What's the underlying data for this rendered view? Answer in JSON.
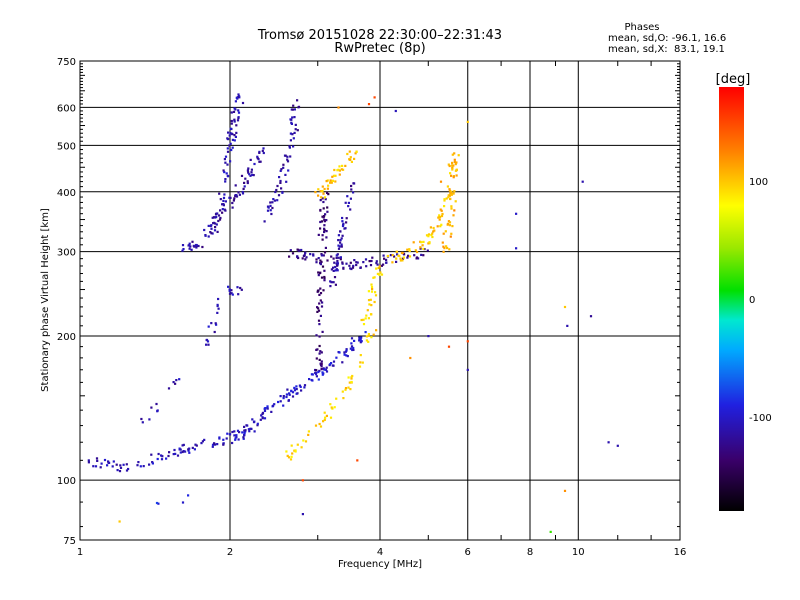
{
  "chart_data": {
    "type": "scatter",
    "title": "Tromsø 20151028 22:30:00–22:31:43",
    "subtitle": "RwPretec (8p)",
    "xlabel": "Frequency [MHz]",
    "ylabel": "Stationary phase Virtual Height [km]",
    "x_scale": "log",
    "y_scale": "log",
    "xlim": [
      1,
      16
    ],
    "ylim": [
      75,
      750
    ],
    "x_ticks": [
      1,
      2,
      4,
      6,
      8,
      10,
      16
    ],
    "x_tick_labels": [
      "1",
      "2",
      "4",
      "6",
      "8",
      "10",
      "16"
    ],
    "y_ticks": [
      75,
      100,
      200,
      300,
      400,
      500,
      600,
      750
    ],
    "y_tick_labels": [
      "75",
      "100",
      "200",
      "300",
      "400",
      "500",
      "600",
      "750"
    ],
    "grid": true,
    "stats": {
      "heading": "Phases",
      "line_o": "mean, sd,O: -96.1, 16.6",
      "line_x": "mean, sd,X:  83.1, 19.1"
    },
    "colorbar": {
      "label": "[deg]",
      "range": [
        -180,
        180
      ],
      "ticks": [
        100,
        0,
        -100
      ],
      "tick_labels": [
        "100",
        "0",
        "-100"
      ]
    },
    "traces": [
      {
        "x": [
          1.0,
          1.1,
          1.2,
          1.3
        ],
        "y": [
          110,
          108,
          107,
          106
        ],
        "phase": -110,
        "n": 25
      },
      {
        "x": [
          1.3,
          1.6,
          1.9,
          2.15,
          2.35
        ],
        "y": [
          108,
          116,
          120,
          126,
          138
        ],
        "phase": -105,
        "n": 95
      },
      {
        "x": [
          2.35,
          2.6,
          2.85,
          3.1,
          3.4,
          3.7
        ],
        "y": [
          138,
          150,
          160,
          170,
          185,
          200
        ],
        "phase": -100,
        "n": 95
      },
      {
        "x": [
          2.6,
          2.85,
          3.1,
          3.4,
          3.7,
          3.9
        ],
        "y": [
          112,
          122,
          135,
          155,
          180,
          210
        ],
        "phase": 95,
        "n": 55
      },
      {
        "x": [
          3.7,
          3.85,
          4.0
        ],
        "y": [
          210,
          240,
          280
        ],
        "phase": 95,
        "n": 30
      },
      {
        "x": [
          1.6,
          1.72,
          1.82,
          1.92,
          2.05,
          2.2,
          2.32
        ],
        "y": [
          300,
          310,
          330,
          360,
          390,
          440,
          500
        ],
        "phase": -115,
        "n": 90
      },
      {
        "x": [
          1.88,
          1.95,
          2.0,
          2.05,
          2.1
        ],
        "y": [
          330,
          420,
          500,
          580,
          640
        ],
        "phase": -110,
        "n": 70
      },
      {
        "x": [
          2.35,
          2.5,
          2.6,
          2.68,
          2.72
        ],
        "y": [
          350,
          400,
          460,
          530,
          620
        ],
        "phase": -115,
        "n": 60
      },
      {
        "x": [
          2.6,
          2.9,
          3.2,
          3.5,
          3.8,
          4.3,
          5.0
        ],
        "y": [
          300,
          295,
          285,
          282,
          285,
          290,
          300
        ],
        "phase": -125,
        "n": 90
      },
      {
        "x": [
          3.0,
          3.02,
          3.05,
          3.1
        ],
        "y": [
          170,
          220,
          290,
          400
        ],
        "phase": -135,
        "n": 80
      },
      {
        "x": [
          3.2,
          3.3,
          3.4,
          3.5
        ],
        "y": [
          250,
          300,
          350,
          420
        ],
        "phase": -115,
        "n": 55
      },
      {
        "x": [
          3.0,
          3.2,
          3.4,
          3.6
        ],
        "y": [
          390,
          420,
          460,
          490
        ],
        "phase": 100,
        "n": 45
      },
      {
        "x": [
          4.2,
          4.6,
          5.0,
          5.3,
          5.5,
          5.6
        ],
        "y": [
          290,
          300,
          320,
          350,
          400,
          470
        ],
        "phase": 100,
        "n": 70
      },
      {
        "x": [
          5.4,
          5.5,
          5.6,
          5.65
        ],
        "y": [
          300,
          340,
          400,
          480
        ],
        "phase": 110,
        "n": 45
      },
      {
        "x": [
          1.8,
          1.85,
          1.9
        ],
        "y": [
          190,
          215,
          240
        ],
        "phase": -110,
        "n": 15
      },
      {
        "x": [
          2.0,
          2.05,
          2.1
        ],
        "y": [
          248,
          250,
          248
        ],
        "phase": -110,
        "n": 12
      },
      {
        "x": [
          1.3,
          1.45,
          1.6
        ],
        "y": [
          130,
          145,
          165
        ],
        "phase": -110,
        "n": 12
      },
      {
        "x": [
          1.4,
          1.55,
          1.7
        ],
        "y": [
          90,
          90,
          92
        ],
        "phase": -90,
        "n": 4
      }
    ],
    "scatter": [
      {
        "x": 4.3,
        "y": 590,
        "phase": -105
      },
      {
        "x": 3.9,
        "y": 630,
        "phase": 150
      },
      {
        "x": 6.0,
        "y": 560,
        "phase": 100
      },
      {
        "x": 10.2,
        "y": 420,
        "phase": -110
      },
      {
        "x": 7.5,
        "y": 360,
        "phase": -100
      },
      {
        "x": 7.5,
        "y": 305,
        "phase": -100
      },
      {
        "x": 9.5,
        "y": 210,
        "phase": -110
      },
      {
        "x": 10.6,
        "y": 220,
        "phase": -120
      },
      {
        "x": 9.4,
        "y": 230,
        "phase": 100
      },
      {
        "x": 11.5,
        "y": 120,
        "phase": -110
      },
      {
        "x": 12.0,
        "y": 118,
        "phase": -110
      },
      {
        "x": 9.4,
        "y": 95,
        "phase": 120
      },
      {
        "x": 8.8,
        "y": 78,
        "phase": 20
      },
      {
        "x": 6.0,
        "y": 170,
        "phase": -110
      },
      {
        "x": 6.0,
        "y": 195,
        "phase": 150
      },
      {
        "x": 5.5,
        "y": 190,
        "phase": 150
      },
      {
        "x": 4.6,
        "y": 180,
        "phase": 120
      },
      {
        "x": 5.0,
        "y": 200,
        "phase": -110
      },
      {
        "x": 3.6,
        "y": 110,
        "phase": 150
      },
      {
        "x": 2.8,
        "y": 100,
        "phase": 150
      },
      {
        "x": 2.8,
        "y": 85,
        "phase": -110
      },
      {
        "x": 1.2,
        "y": 82,
        "phase": 100
      },
      {
        "x": 3.3,
        "y": 600,
        "phase": 120
      },
      {
        "x": 3.8,
        "y": 610,
        "phase": 150
      },
      {
        "x": 5.3,
        "y": 420,
        "phase": 120
      }
    ]
  }
}
